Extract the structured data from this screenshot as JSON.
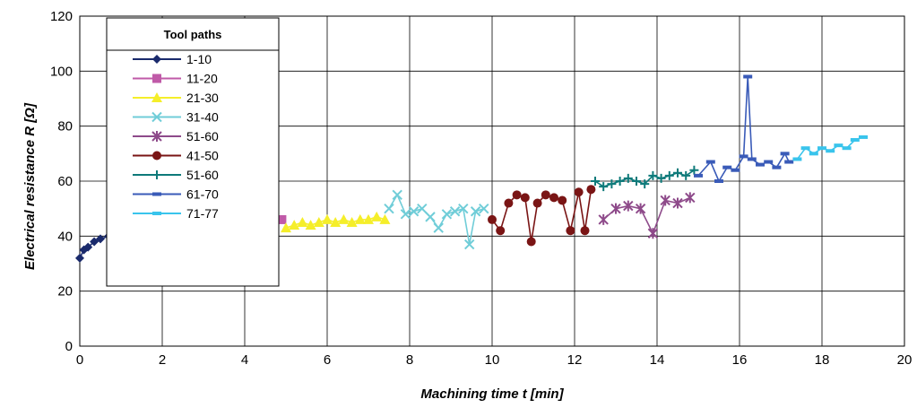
{
  "chart_data": {
    "type": "scatter",
    "title": "",
    "xlabel": "Machining time t [min]",
    "ylabel": "Electrical resistance R [Ω]",
    "xlim": [
      0,
      20
    ],
    "ylim": [
      0,
      120
    ],
    "xticks": [
      "0",
      "2",
      "4",
      "6",
      "8",
      "10",
      "12",
      "14",
      "16",
      "18",
      "20"
    ],
    "yticks": [
      "0",
      "20",
      "40",
      "60",
      "80",
      "100",
      "120"
    ],
    "grid": true,
    "legend_title": "Tool paths",
    "legend_position": "top-left",
    "series": [
      {
        "name": "1-10",
        "color": "#1a2a6c",
        "marker": "diamond",
        "x": [
          0.0,
          0.1,
          0.2,
          0.35,
          0.5,
          0.7,
          0.9,
          1.1,
          1.3,
          1.5,
          1.7,
          1.9,
          2.1,
          2.3,
          2.45
        ],
        "y": [
          32,
          35,
          36,
          38,
          39,
          40,
          41,
          42,
          43,
          43,
          44,
          45,
          44,
          45,
          45
        ]
      },
      {
        "name": "11-20",
        "color": "#c05aa8",
        "marker": "square",
        "x": [
          2.5,
          2.7,
          2.9,
          3.1,
          3.3,
          3.5,
          3.7,
          3.9,
          4.1,
          4.2,
          4.3,
          4.5,
          4.7,
          4.9
        ],
        "y": [
          42,
          43,
          44,
          44,
          45,
          45,
          45,
          46,
          45,
          36,
          45,
          46,
          45,
          46
        ]
      },
      {
        "name": "21-30",
        "color": "#f5ee2a",
        "marker": "triangle",
        "x": [
          5.0,
          5.2,
          5.4,
          5.6,
          5.8,
          6.0,
          6.2,
          6.4,
          6.6,
          6.8,
          7.0,
          7.2,
          7.4
        ],
        "y": [
          43,
          44,
          45,
          44,
          45,
          46,
          45,
          46,
          45,
          46,
          46,
          47,
          46
        ]
      },
      {
        "name": "31-40",
        "color": "#70cdd8",
        "marker": "x",
        "x": [
          7.5,
          7.7,
          7.9,
          8.1,
          8.3,
          8.5,
          8.7,
          8.9,
          9.1,
          9.3,
          9.45,
          9.6,
          9.8
        ],
        "y": [
          50,
          55,
          48,
          49,
          50,
          47,
          43,
          48,
          49,
          50,
          37,
          49,
          50
        ]
      },
      {
        "name": "51-60",
        "color": "#8e4a8a",
        "marker": "star",
        "x": [
          12.7,
          13.0,
          13.3,
          13.6,
          13.9,
          14.2,
          14.5,
          14.8
        ],
        "y": [
          46,
          50,
          51,
          50,
          41,
          53,
          52,
          54
        ]
      },
      {
        "name": "41-50",
        "color": "#7a1515",
        "marker": "circle",
        "x": [
          10.0,
          10.2,
          10.4,
          10.6,
          10.8,
          10.95,
          11.1,
          11.3,
          11.5,
          11.7,
          11.9,
          12.1,
          12.25,
          12.4
        ],
        "y": [
          46,
          42,
          52,
          55,
          54,
          38,
          52,
          55,
          54,
          53,
          42,
          56,
          42,
          57
        ]
      },
      {
        "name": "51-60",
        "color": "#0e7a7a",
        "marker": "plus",
        "x": [
          12.5,
          12.7,
          12.9,
          13.1,
          13.3,
          13.5,
          13.7,
          13.9,
          14.1,
          14.3,
          14.5,
          14.7,
          14.9
        ],
        "y": [
          60,
          58,
          59,
          60,
          61,
          60,
          59,
          62,
          61,
          62,
          63,
          62,
          64
        ]
      },
      {
        "name": "61-70",
        "color": "#3a5bb8",
        "marker": "dash",
        "x": [
          15.0,
          15.3,
          15.5,
          15.7,
          15.9,
          16.1,
          16.2,
          16.3,
          16.5,
          16.7,
          16.9,
          17.1,
          17.2
        ],
        "y": [
          62,
          67,
          60,
          65,
          64,
          69,
          98,
          68,
          66,
          67,
          65,
          70,
          67
        ]
      },
      {
        "name": "71-77",
        "color": "#39c4ec",
        "marker": "dash",
        "x": [
          17.4,
          17.6,
          17.8,
          18.0,
          18.2,
          18.4,
          18.6,
          18.8,
          19.0
        ],
        "y": [
          68,
          72,
          70,
          72,
          71,
          73,
          72,
          75,
          76
        ]
      }
    ]
  }
}
